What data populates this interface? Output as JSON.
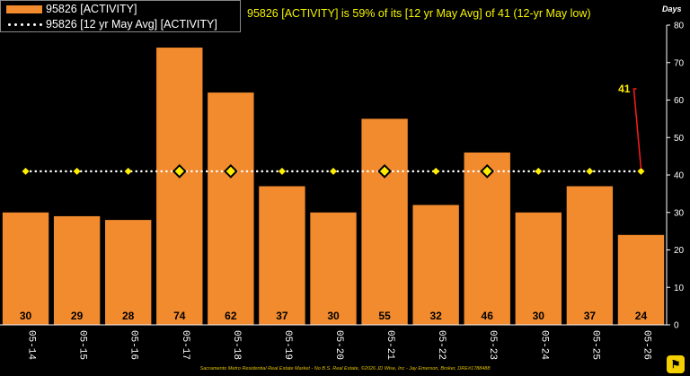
{
  "headline": "95826 [ACTIVITY] is 59% of its [12 yr May Avg] of 41 (12-yr May low)",
  "footer": "Sacramento Metro Residential Real Estate Market - No B.S. Real Estate, ©2026 JD Wise, Inc - Jay Emerson, Broker, DRE#1788488",
  "colors": {
    "bar": "#f28a2e",
    "avg_marker": "#ffee00",
    "avg_line": "#ffffff",
    "callout": "#ff1a1a",
    "headline": "#f5f500",
    "background": "#000000"
  },
  "chart_data": {
    "type": "bar",
    "categories": [
      "05-14",
      "05-15",
      "05-16",
      "05-17",
      "05-18",
      "05-19",
      "05-20",
      "05-21",
      "05-22",
      "05-23",
      "05-24",
      "05-25",
      "05-26"
    ],
    "series": [
      {
        "name": "95826 [ACTIVITY]",
        "type": "bar",
        "values": [
          30,
          29,
          28,
          74,
          62,
          37,
          30,
          55,
          32,
          46,
          30,
          37,
          24
        ]
      },
      {
        "name": "95826 [12 yr May Avg] [ACTIVITY]",
        "type": "line",
        "values": [
          41,
          41,
          41,
          41,
          41,
          41,
          41,
          41,
          41,
          41,
          41,
          41,
          41
        ],
        "highlighted": [
          false,
          false,
          false,
          true,
          true,
          false,
          false,
          true,
          false,
          true,
          false,
          false,
          false
        ]
      }
    ],
    "ylabel": "Days",
    "ylim": [
      0,
      80
    ],
    "yticks": [
      0,
      10,
      20,
      30,
      40,
      50,
      60,
      70,
      80
    ],
    "y_axis_side": "right",
    "grid": false,
    "legend": "top-left",
    "callout": {
      "text": "41",
      "category": "05-26",
      "value": 41
    }
  }
}
